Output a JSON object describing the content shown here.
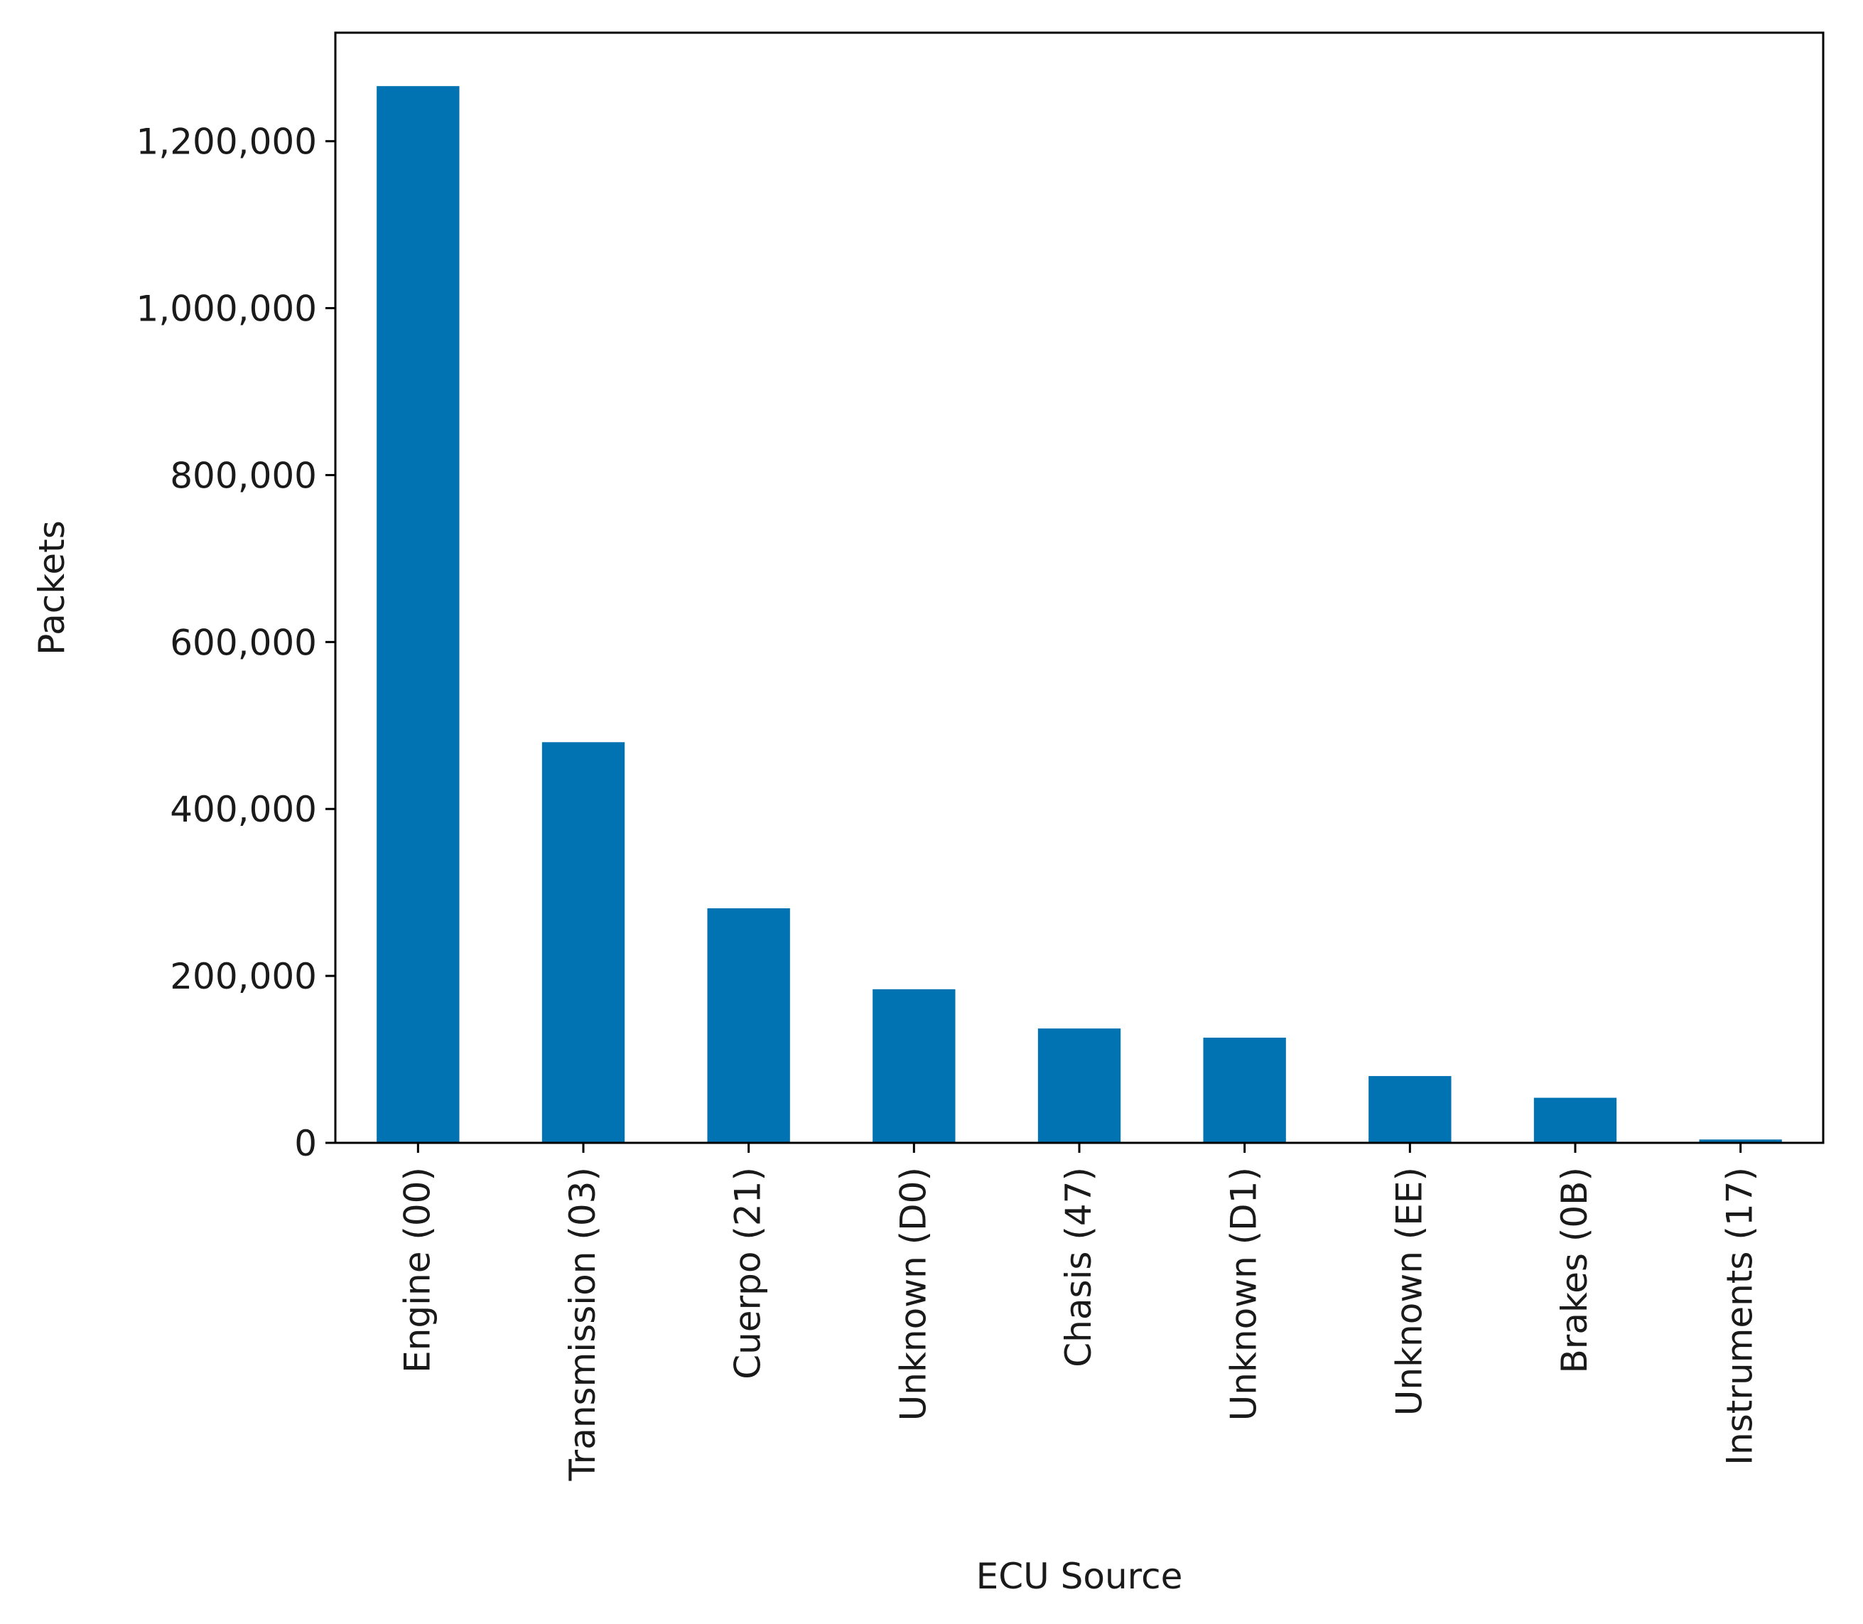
{
  "chart_data": {
    "type": "bar",
    "title": "",
    "xlabel": "ECU Source",
    "ylabel": "Packets",
    "categories": [
      "Engine (00)",
      "Transmission (03)",
      "Cuerpo (21)",
      "Unknown (D0)",
      "Chasis (47)",
      "Unknown (D1)",
      "Unknown (EE)",
      "Brakes (0B)",
      "Instruments (17)"
    ],
    "values": [
      1266000,
      480000,
      281000,
      184000,
      137000,
      126000,
      80000,
      54000,
      4000
    ],
    "ylim": [
      0,
      1330000
    ],
    "yticks": [
      0,
      200000,
      400000,
      600000,
      800000,
      1000000,
      1200000
    ],
    "ytick_labels": [
      "0",
      "200,000",
      "400,000",
      "600,000",
      "800,000",
      "1,000,000",
      "1,200,000"
    ],
    "bar_color": "#0173b2",
    "grid": false,
    "legend": "none"
  }
}
